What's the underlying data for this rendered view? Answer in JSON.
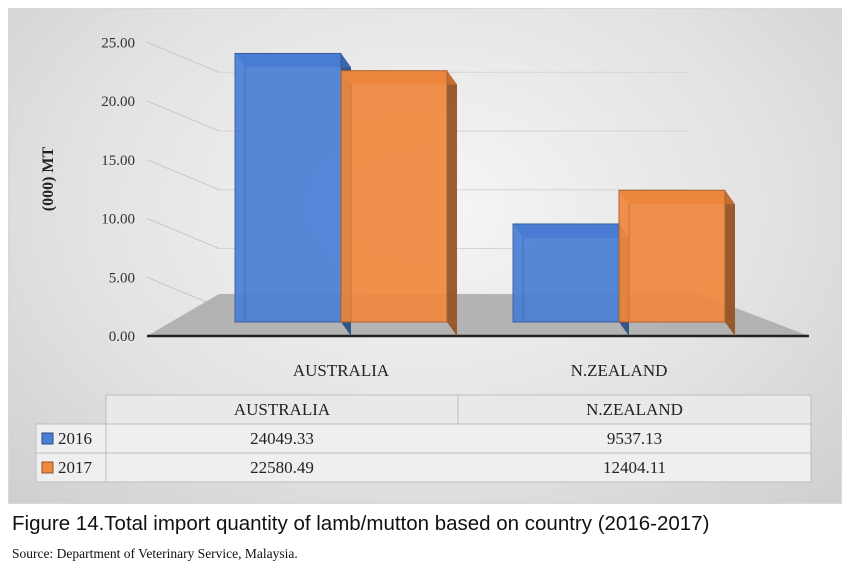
{
  "chart_data": {
    "type": "bar",
    "ylabel": "(000) MT",
    "ylim": [
      0,
      25
    ],
    "ytick_step": 5,
    "yticks": [
      "0.00",
      "5.00",
      "10.00",
      "15.00",
      "20.00",
      "25.00"
    ],
    "categories": [
      "AUSTRALIA",
      "N.ZEALAND"
    ],
    "series": [
      {
        "name": "2016",
        "values": [
          24.04933,
          9.53713
        ],
        "color": "#4a7fd6"
      },
      {
        "name": "2017",
        "values": [
          22.58049,
          12.40411
        ],
        "color": "#f0883e"
      }
    ],
    "grid": true,
    "legend": "data-table",
    "table": {
      "headers": [
        "AUSTRALIA",
        "N.ZEALAND"
      ],
      "rows": [
        {
          "label": "2016",
          "cells": [
            "24049.33",
            "9537.13"
          ]
        },
        {
          "label": "2017",
          "cells": [
            "22580.49",
            "12404.11"
          ]
        }
      ]
    }
  },
  "caption": "Figure 14.Total import quantity of lamb/mutton based on country (2016-2017)",
  "source": "Source: Department of Veterinary Service, Malaysia."
}
